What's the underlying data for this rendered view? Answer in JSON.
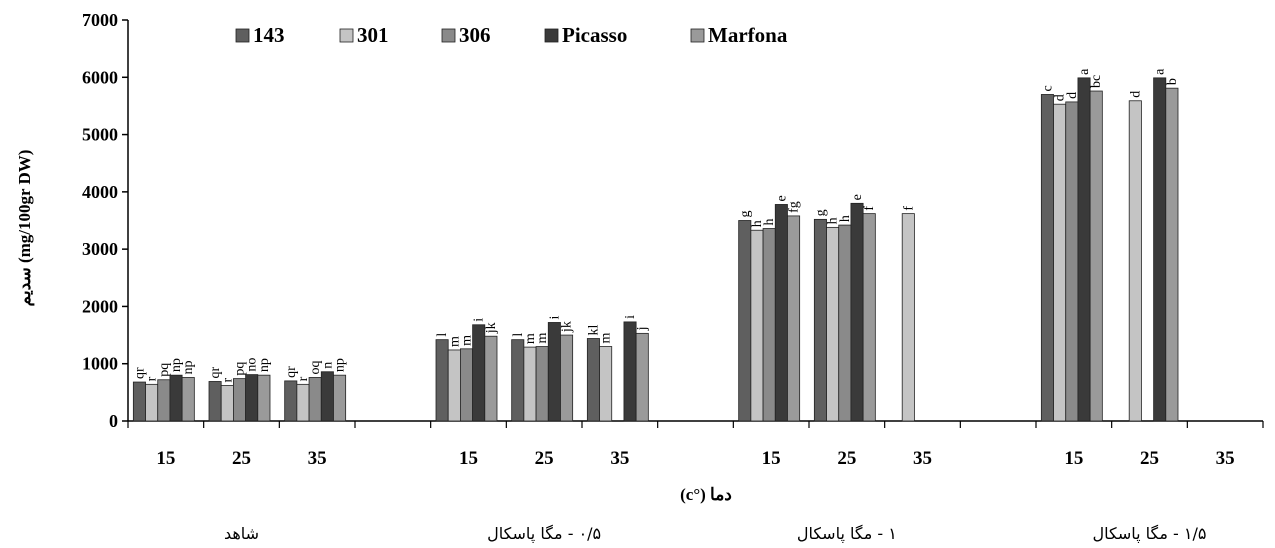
{
  "chart_data": {
    "type": "bar",
    "ylabel": "(mg/100gr DW) سدیم",
    "xlabel": "دما (°c)",
    "ylim": [
      0,
      7000
    ],
    "yticks": [
      0,
      1000,
      2000,
      3000,
      4000,
      5000,
      6000,
      7000
    ],
    "legend_position": "top-left",
    "series": [
      {
        "name": "143",
        "color": "#5f5f5f"
      },
      {
        "name": "301",
        "color": "#c4c4c4"
      },
      {
        "name": "306",
        "color": "#8a8a8a"
      },
      {
        "name": "Picasso",
        "color": "#3a3a3a"
      },
      {
        "name": "Marfona",
        "color": "#9a9a9a"
      }
    ],
    "groups": [
      {
        "label": "شاهد",
        "temps": [
          {
            "temp": "15",
            "values": [
              680,
              640,
              720,
              800,
              760
            ],
            "letters": [
              "qr",
              "r",
              "pq",
              "np",
              "np"
            ]
          },
          {
            "temp": "25",
            "values": [
              690,
              620,
              740,
              810,
              800
            ],
            "letters": [
              "qr",
              "r",
              "pq",
              "no",
              "np"
            ]
          },
          {
            "temp": "35",
            "values": [
              700,
              640,
              760,
              860,
              800
            ],
            "letters": [
              "qr",
              "r",
              "oq",
              "n",
              "np"
            ]
          }
        ]
      },
      {
        "label": "۰/۵ - مگا پاسکال",
        "temps": [
          {
            "temp": "15",
            "values": [
              1420,
              1240,
              1260,
              1680,
              1480
            ],
            "letters": [
              "l",
              "m",
              "m",
              "i",
              "jk"
            ]
          },
          {
            "temp": "25",
            "values": [
              1420,
              1290,
              1300,
              1720,
              1500
            ],
            "letters": [
              "l",
              "m",
              "m",
              "i",
              "jk"
            ]
          },
          {
            "temp": "35",
            "values": [
              1440,
              1300,
              null,
              1730,
              1530
            ],
            "letters": [
              "kl",
              "m",
              null,
              "i",
              "j"
            ]
          }
        ]
      },
      {
        "label": "۱ - مگا پاسکال",
        "temps": [
          {
            "temp": "15",
            "values": [
              3500,
              3330,
              3360,
              3780,
              3580
            ],
            "letters": [
              "g",
              "h",
              "h",
              "e",
              "fg"
            ]
          },
          {
            "temp": "25",
            "values": [
              3520,
              3380,
              3420,
              3800,
              3620
            ],
            "letters": [
              "g",
              "h",
              "h",
              "e",
              "f"
            ]
          },
          {
            "temp": "35",
            "values": [
              null,
              3620,
              null,
              null,
              null
            ],
            "letters": [
              null,
              "f",
              null,
              null,
              null
            ]
          }
        ]
      },
      {
        "label": "۱/۵ - مگا پاسکال",
        "temps": [
          {
            "temp": "15",
            "values": [
              5700,
              5530,
              5570,
              5990,
              5760
            ],
            "letters": [
              "c",
              "d",
              "d",
              "a",
              "bc"
            ]
          },
          {
            "temp": "25",
            "values": [
              null,
              5590,
              null,
              5990,
              5810
            ],
            "letters": [
              null,
              "d",
              null,
              "a",
              "b"
            ]
          },
          {
            "temp": "35",
            "values": [
              null,
              null,
              null,
              null,
              null
            ],
            "letters": [
              null,
              null,
              null,
              null,
              null
            ]
          }
        ]
      }
    ]
  }
}
